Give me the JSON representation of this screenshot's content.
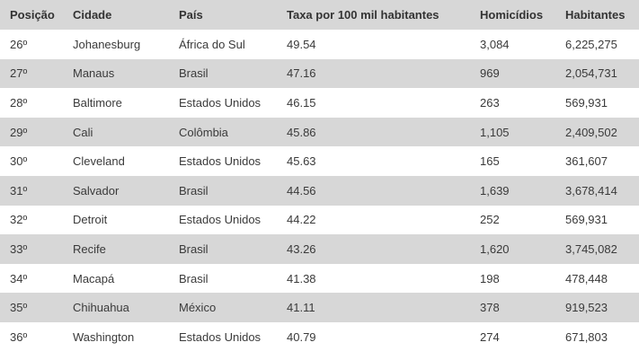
{
  "table": {
    "headers": [
      "Posição",
      "Cidade",
      "País",
      "Taxa por 100 mil habitantes",
      "Homicídios",
      "Habitantes"
    ],
    "rows": [
      [
        "26º",
        "Johanesburg",
        "África do Sul",
        "49.54",
        "3,084",
        "6,225,275"
      ],
      [
        "27º",
        "Manaus",
        "Brasil",
        "47.16",
        "969",
        "2,054,731"
      ],
      [
        "28º",
        "Baltimore",
        "Estados Unidos",
        "46.15",
        "263",
        "569,931"
      ],
      [
        "29º",
        "Cali",
        "Colômbia",
        "45.86",
        "1,105",
        "2,409,502"
      ],
      [
        "30º",
        "Cleveland",
        "Estados Unidos",
        "45.63",
        "165",
        "361,607"
      ],
      [
        "31º",
        "Salvador",
        "Brasil",
        "44.56",
        "1,639",
        "3,678,414"
      ],
      [
        "32º",
        "Detroit",
        "Estados Unidos",
        "44.22",
        "252",
        "569,931"
      ],
      [
        "33º",
        "Recife",
        "Brasil",
        "43.26",
        "1,620",
        "3,745,082"
      ],
      [
        "34º",
        "Macapá",
        "Brasil",
        "41.38",
        "198",
        "478,448"
      ],
      [
        "35º",
        "Chihuahua",
        "México",
        "41.11",
        "378",
        "919,523"
      ],
      [
        "36º",
        "Washington",
        "Estados Unidos",
        "40.79",
        "274",
        "671,803"
      ]
    ]
  }
}
